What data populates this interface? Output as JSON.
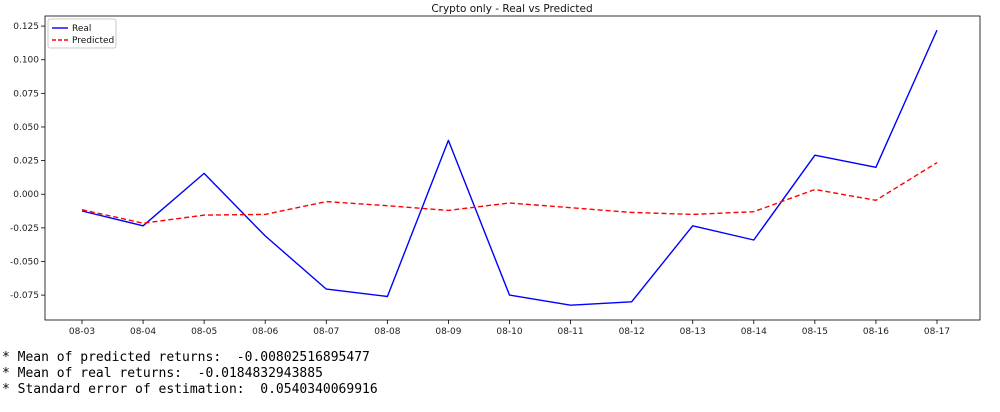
{
  "chart_data": {
    "type": "line",
    "title": "Crypto only - Real vs Predicted",
    "categories": [
      "08-03",
      "08-04",
      "08-05",
      "08-06",
      "08-07",
      "08-08",
      "08-09",
      "08-10",
      "08-11",
      "08-12",
      "08-13",
      "08-14",
      "08-15",
      "08-16",
      "08-17"
    ],
    "series": [
      {
        "name": "Real",
        "color": "#0000ff",
        "style": "solid",
        "values": [
          -0.0125,
          -0.0235,
          0.0155,
          -0.031,
          -0.0705,
          -0.076,
          0.04,
          -0.075,
          -0.0825,
          -0.08,
          -0.0235,
          -0.034,
          0.029,
          0.02,
          0.122
        ]
      },
      {
        "name": "Predicted",
        "color": "#ff0000",
        "style": "dashed",
        "values": [
          -0.0115,
          -0.0215,
          -0.0155,
          -0.015,
          -0.0055,
          -0.0085,
          -0.012,
          -0.0065,
          -0.01,
          -0.0135,
          -0.015,
          -0.013,
          0.0035,
          -0.0045,
          0.0235
        ]
      }
    ],
    "yticks": [
      -0.075,
      -0.05,
      -0.025,
      0.0,
      0.025,
      0.05,
      0.075,
      0.1,
      0.125
    ],
    "ytick_labels": [
      "-0.075",
      "-0.050",
      "-0.025",
      "0.000",
      "0.025",
      "0.050",
      "0.075",
      "0.100",
      "0.125"
    ],
    "ylim": [
      -0.0935,
      0.1325
    ],
    "grid": false,
    "legend_position": "top-left"
  },
  "stats": [
    "* Mean of predicted returns:  -0.00802516895477",
    "* Mean of real returns:  -0.0184832943885",
    "* Standard error of estimation:  0.0540340069916"
  ]
}
